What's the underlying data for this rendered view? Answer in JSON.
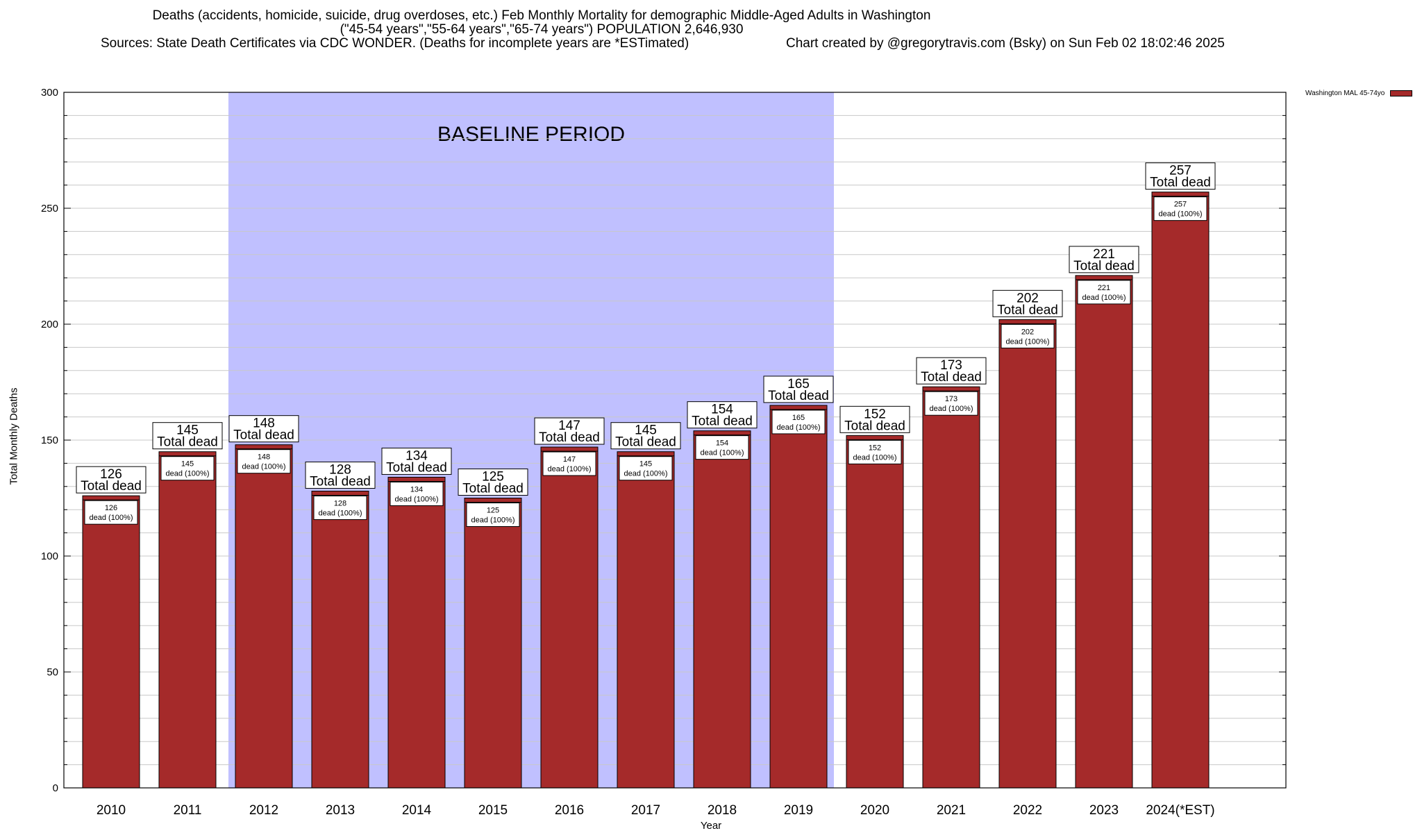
{
  "header": {
    "line1": "Deaths (accidents, homicide, suicide, drug overdoses, etc.) Feb Monthly Mortality for demographic Middle-Aged Adults in Washington",
    "line2": "(\"45-54 years\",\"55-64 years\",\"65-74 years\") POPULATION 2,646,930",
    "line3a": "Sources: State Death Certificates via CDC WONDER. (Deaths for incomplete years are *ESTimated)",
    "line3b": "Chart created by @gregorytravis.com (Bsky) on Sun Feb 02 18:02:46 2025"
  },
  "chart_data": {
    "type": "bar",
    "categories": [
      "2010",
      "2011",
      "2012",
      "2013",
      "2014",
      "2015",
      "2016",
      "2017",
      "2018",
      "2019",
      "2020",
      "2021",
      "2022",
      "2023",
      "2024(*EST)"
    ],
    "series": [
      {
        "name": "Washington MAL 45-74yo",
        "values": [
          126,
          145,
          148,
          128,
          134,
          125,
          147,
          145,
          154,
          165,
          152,
          173,
          202,
          221,
          257
        ]
      }
    ],
    "top_label_suffix": "Total dead",
    "inner_label_suffix": "dead (100%)",
    "baseline_band": {
      "label": "BASELINE PERIOD",
      "from": "2012",
      "to": "2019"
    },
    "ylim": [
      0,
      300
    ],
    "yticks": [
      0,
      50,
      100,
      150,
      200,
      250,
      300
    ],
    "xlabel": "Year",
    "ylabel": "Total Monthly Deaths",
    "legend_position": "top-right",
    "grid": true,
    "colors": {
      "bar": "#a52a2a",
      "band": "#c0c0ff",
      "grid": "#c8c8c8"
    }
  }
}
